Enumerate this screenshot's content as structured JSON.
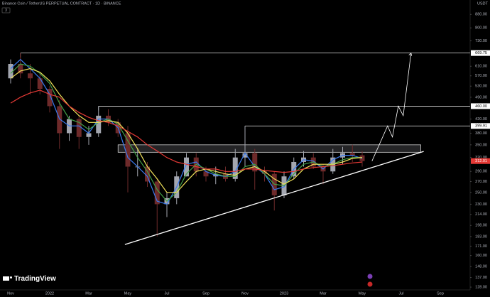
{
  "chart_data": {
    "type": "candlestick",
    "title": "Binance Coin / TetherUS PERPETUAL CONTRACT · 1D · BINANCE",
    "indicators_badge": "3",
    "currency": "USDT",
    "branding": "TradingView",
    "log_scale": true,
    "up_color": "#a3a6af",
    "down_color": "#6e2a2a",
    "categories": [
      "Nov",
      null,
      null,
      null,
      "2022",
      null,
      null,
      null,
      "Mar",
      null,
      null,
      null,
      "May",
      null,
      null,
      null,
      "Jul",
      null,
      null,
      null,
      "Sep",
      null,
      null,
      null,
      "Nov",
      null,
      null,
      null,
      "2023",
      null,
      null,
      null,
      "Mar",
      null,
      null,
      null,
      "May",
      null,
      null,
      null,
      "Jul",
      null,
      null,
      null,
      "Sep",
      null,
      null
    ],
    "open": [
      560,
      620,
      580,
      560,
      520,
      460,
      380,
      420,
      370,
      380,
      430,
      410,
      380,
      300,
      300,
      270,
      230,
      240,
      280,
      320,
      290,
      280,
      285,
      275,
      320,
      330,
      290,
      285,
      245,
      280,
      310,
      320,
      300,
      290,
      320,
      330,
      325,
      null,
      null,
      null,
      null,
      null,
      null,
      null,
      null,
      null,
      null
    ],
    "high": [
      640,
      669.75,
      620,
      580,
      530,
      480,
      430,
      430,
      400,
      460,
      450,
      420,
      400,
      340,
      310,
      275,
      250,
      290,
      330,
      330,
      300,
      300,
      300,
      340,
      399.91,
      340,
      300,
      290,
      290,
      320,
      335,
      330,
      305,
      340,
      345,
      350,
      335,
      null,
      null,
      null,
      null,
      null,
      null,
      null,
      null,
      null,
      null
    ],
    "low": [
      540,
      560,
      500,
      500,
      440,
      340,
      360,
      340,
      350,
      370,
      400,
      370,
      250,
      280,
      260,
      183,
      210,
      230,
      280,
      280,
      270,
      265,
      270,
      270,
      300,
      255,
      270,
      220,
      240,
      275,
      300,
      295,
      265,
      285,
      305,
      310,
      300,
      null,
      null,
      null,
      null,
      null,
      null,
      null,
      null,
      null,
      null
    ],
    "close": [
      620,
      580,
      560,
      520,
      460,
      380,
      420,
      370,
      380,
      430,
      410,
      380,
      300,
      300,
      270,
      230,
      240,
      280,
      320,
      290,
      280,
      285,
      275,
      320,
      330,
      290,
      285,
      245,
      280,
      310,
      320,
      300,
      290,
      320,
      330,
      325,
      312.01,
      null,
      null,
      null,
      null,
      null,
      null,
      null,
      null,
      null,
      null
    ],
    "series": [
      {
        "color": "#3a7bf0",
        "values": [
          600,
          640,
          600,
          560,
          500,
          420,
          400,
          400,
          380,
          420,
          420,
          395,
          320,
          300,
          280,
          235,
          230,
          260,
          305,
          310,
          290,
          282,
          280,
          290,
          330,
          300,
          285,
          255,
          260,
          295,
          315,
          312,
          295,
          315,
          325,
          325,
          318,
          null,
          null,
          null,
          null,
          null,
          null,
          null,
          null,
          null,
          null
        ]
      },
      {
        "color": "#43a047",
        "values": [
          580,
          620,
          610,
          580,
          540,
          470,
          420,
          410,
          390,
          410,
          420,
          405,
          360,
          320,
          290,
          255,
          235,
          250,
          285,
          305,
          295,
          285,
          280,
          280,
          300,
          305,
          285,
          265,
          262,
          285,
          305,
          310,
          300,
          305,
          315,
          320,
          320,
          null,
          null,
          null,
          null,
          null,
          null,
          null,
          null,
          null,
          null
        ]
      },
      {
        "color": "#f2e35a",
        "values": [
          560,
          590,
          600,
          585,
          550,
          500,
          460,
          430,
          410,
          410,
          415,
          410,
          380,
          340,
          300,
          275,
          250,
          250,
          270,
          290,
          295,
          290,
          285,
          282,
          295,
          300,
          290,
          275,
          265,
          275,
          295,
          305,
          305,
          305,
          310,
          318,
          320,
          null,
          null,
          null,
          null,
          null,
          null,
          null,
          null,
          null,
          null
        ]
      },
      {
        "color": "#e53935",
        "values": [
          470,
          490,
          505,
          515,
          500,
          490,
          460,
          440,
          425,
          415,
          410,
          400,
          385,
          370,
          350,
          335,
          320,
          310,
          305,
          300,
          295,
          295,
          290,
          290,
          295,
          295,
          292,
          290,
          288,
          290,
          295,
          298,
          300,
          302,
          305,
          308,
          310,
          null,
          null,
          null,
          null,
          null,
          null,
          null,
          null,
          null,
          null
        ]
      }
    ],
    "levels": [
      {
        "value": 669.75,
        "label": "669.75",
        "start_index": 1
      },
      {
        "value": 460,
        "label": "460.00",
        "start_index": 9
      },
      {
        "value": 399.91,
        "label": "399.91",
        "start_index": 24
      }
    ],
    "band": {
      "low": 332,
      "high": 350,
      "start_index": 11,
      "end_index": 42
    },
    "trendline": {
      "x": [
        11.7,
        42.3
      ],
      "values": [
        173,
        334
      ]
    },
    "projection": {
      "x": [
        37,
        38.6,
        39.1,
        39.7,
        40.2,
        41
      ],
      "values": [
        312,
        400,
        370,
        460,
        430,
        669.75
      ]
    },
    "ylim": [
      125.5,
      936
    ],
    "yticks": [
      {
        "value": 880,
        "label": "880.00"
      },
      {
        "value": 800,
        "label": "800.00"
      },
      {
        "value": 730,
        "label": "730.00"
      },
      {
        "value": 610,
        "label": "610.00"
      },
      {
        "value": 570,
        "label": "570.00"
      },
      {
        "value": 530,
        "label": "530.00"
      },
      {
        "value": 490,
        "label": "490.00"
      },
      {
        "value": 420,
        "label": "420.00"
      },
      {
        "value": 380,
        "label": "380.00"
      },
      {
        "value": 350,
        "label": "350.00"
      },
      {
        "value": 320,
        "label": "320.00"
      },
      {
        "value": 290,
        "label": "290.00"
      },
      {
        "value": 270,
        "label": "270.00"
      },
      {
        "value": 250,
        "label": "250.00"
      },
      {
        "value": 230,
        "label": "230.00"
      },
      {
        "value": 214,
        "label": "214.00"
      },
      {
        "value": 198,
        "label": "198.00"
      },
      {
        "value": 183,
        "label": "183.00"
      },
      {
        "value": 171,
        "label": "171.00"
      },
      {
        "value": 160,
        "label": "160.00"
      },
      {
        "value": 148,
        "label": "148.00"
      },
      {
        "value": 137,
        "label": "137.00"
      },
      {
        "value": 128,
        "label": "128.00"
      }
    ]
  }
}
